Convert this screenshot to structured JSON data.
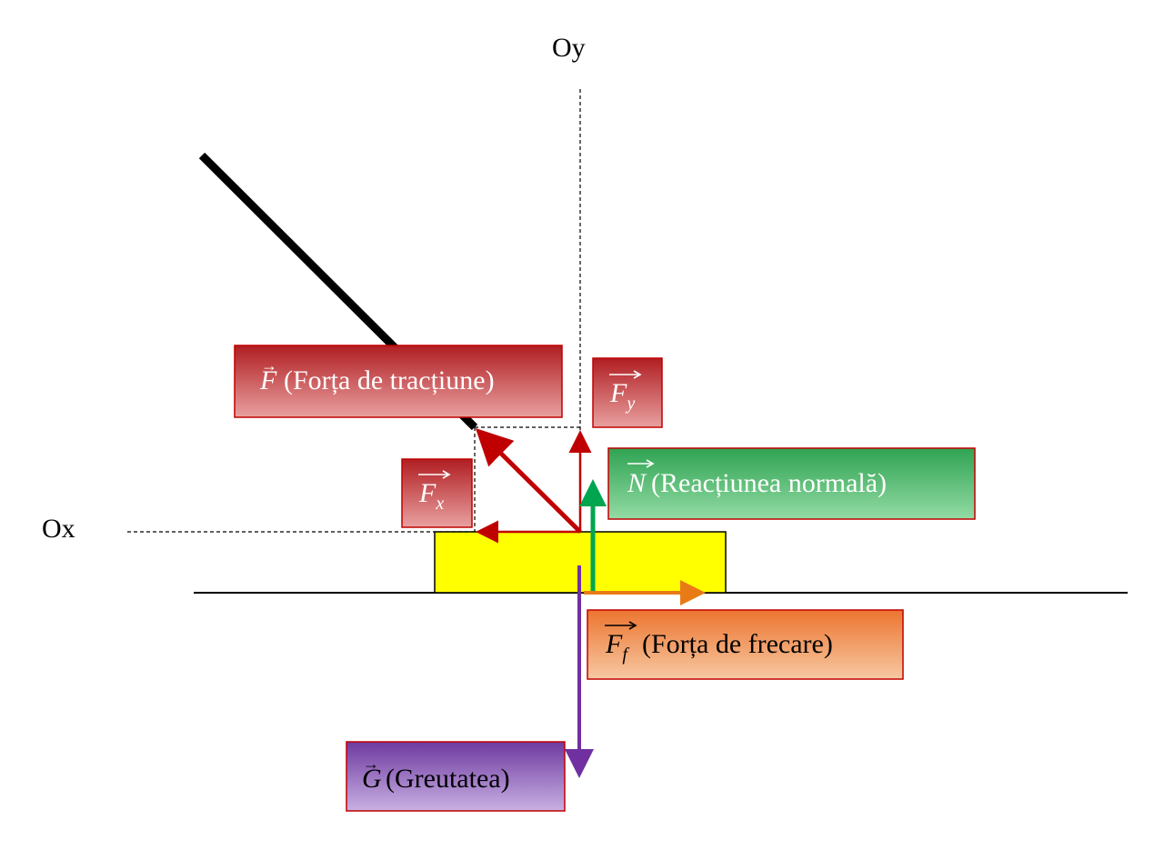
{
  "axes": {
    "ox_label": "Ox",
    "oy_label": "Oy"
  },
  "labels": {
    "traction": {
      "symbol": "F",
      "text": "(Forța de tracțiune)"
    },
    "fy": {
      "symbol": "F",
      "subscript": "y"
    },
    "fx": {
      "symbol": "F",
      "subscript": "x"
    },
    "normal": {
      "symbol": "N",
      "text": "(Reacțiunea normală)"
    },
    "friction": {
      "symbol": "F",
      "subscript": "f",
      "text": "(Forța de frecare)"
    },
    "weight": {
      "symbol": "G",
      "text": "(Greutatea)"
    }
  },
  "colors": {
    "traction": "#c00000",
    "normal": "#00a550",
    "friction": "#e97b16",
    "weight": "#7030a0",
    "block": "#ffff00",
    "rope": "#000000",
    "label_red": "#c0393b",
    "label_green": "#3caa5c",
    "label_orange": "#ee8a45",
    "label_purple": "#8a5fb5"
  }
}
